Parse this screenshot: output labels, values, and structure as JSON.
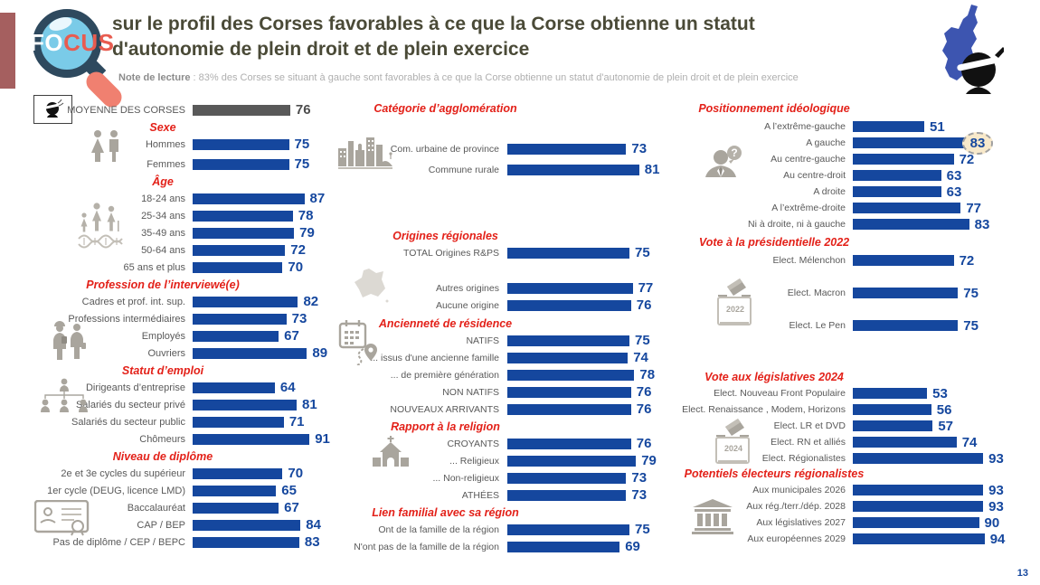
{
  "header": {
    "logo_fo": "FO",
    "logo_cus": "CUS",
    "title_line1": "sur le profil des Corses favorables à ce que la Corse obtienne un statut",
    "title_line2": "d'autonomie de plein droit et de plein exercice",
    "note_label": "Note de lecture",
    "note_text": " : 83% des Corses se situant à gauche sont favorables à ce que la Corse obtienne un statut d'autonomie de plein droit et de plein exercice"
  },
  "page_number": "13",
  "colors": {
    "bar_blue": "#15479E",
    "bar_gray": "#595959",
    "section_red": "#E32119",
    "label_gray": "#595959",
    "title_olive": "#4A4A37",
    "accent_maroon": "#A55F5F",
    "highlight_bg": "#F8E9CB",
    "corsica_blue": "#3D55B0",
    "icon_gray": "#A9A59D"
  },
  "icons": {
    "ballot_2022": "2022",
    "ballot_2024": "2024"
  },
  "chart_data": {
    "type": "bar",
    "orientation": "horizontal",
    "unit": "%",
    "value_range": [
      0,
      100
    ],
    "average": {
      "label": "MOYENNE DES CORSES",
      "value": 76
    },
    "left": {
      "sexe": {
        "title": "Sexe",
        "rows": [
          {
            "label": "Hommes",
            "value": 75
          },
          {
            "label": "Femmes",
            "value": 75
          }
        ]
      },
      "age": {
        "title": "Âge",
        "rows": [
          {
            "label": "18-24 ans",
            "value": 87
          },
          {
            "label": "25-34 ans",
            "value": 78
          },
          {
            "label": "35-49 ans",
            "value": 79
          },
          {
            "label": "50-64 ans",
            "value": 72
          },
          {
            "label": "65 ans et plus",
            "value": 70
          }
        ]
      },
      "profession": {
        "title": "Profession de l’interviewé(e)",
        "rows": [
          {
            "label": "Cadres et prof. int. sup.",
            "value": 82
          },
          {
            "label": "Professions intermédiaires",
            "value": 73
          },
          {
            "label": "Employés",
            "value": 67
          },
          {
            "label": "Ouvriers",
            "value": 89
          }
        ]
      },
      "statut": {
        "title": "Statut d’emploi",
        "rows": [
          {
            "label": "Dirigeants d’entreprise",
            "value": 64
          },
          {
            "label": "Salariés du secteur privé",
            "value": 81
          },
          {
            "label": "Salariés du secteur public",
            "value": 71
          },
          {
            "label": "Chômeurs",
            "value": 91
          }
        ]
      },
      "diplome": {
        "title": "Niveau de diplôme",
        "rows": [
          {
            "label": "2e et 3e cycles du supérieur",
            "value": 70
          },
          {
            "label": "1er cycle (DEUG, licence LMD)",
            "value": 65
          },
          {
            "label": "Baccalauréat",
            "value": 67
          },
          {
            "label": "CAP / BEP",
            "value": 84
          },
          {
            "label": "Pas de diplôme / CEP / BEPC",
            "value": 83
          }
        ]
      }
    },
    "middle": {
      "agglomeration": {
        "title": "Catégorie d’agglomération",
        "rows": [
          {
            "label": "Com. urbaine de province",
            "value": 73
          },
          {
            "label": "Commune rurale",
            "value": 81
          }
        ]
      },
      "origines": {
        "title": "Origines régionales",
        "rows": [
          {
            "label": "TOTAL Origines R&PS",
            "value": 75
          },
          {
            "label": "Autres origines",
            "value": 77
          },
          {
            "label": "Aucune origine",
            "value": 76
          }
        ]
      },
      "anciennete": {
        "title": "Ancienneté de résidence",
        "rows": [
          {
            "label": "NATIFS",
            "value": 75
          },
          {
            "label": "... issus d'une ancienne famille",
            "value": 74
          },
          {
            "label": "... de première génération",
            "value": 78
          },
          {
            "label": "NON NATIFS",
            "value": 76
          },
          {
            "label": "NOUVEAUX ARRIVANTS",
            "value": 76
          }
        ]
      },
      "religion": {
        "title": "Rapport à la religion",
        "rows": [
          {
            "label": "CROYANTS",
            "value": 76
          },
          {
            "label": "... Religieux",
            "value": 79
          },
          {
            "label": "... Non-religieux",
            "value": 73
          },
          {
            "label": "ATHÉES",
            "value": 73
          }
        ]
      },
      "lien": {
        "title": "Lien familial avec sa région",
        "rows": [
          {
            "label": "Ont de la famille de la région",
            "value": 75
          },
          {
            "label": "N'ont pas de la famille de la région",
            "value": 69
          }
        ]
      }
    },
    "right": {
      "ideologie": {
        "title": "Positionnement idéologique",
        "rows": [
          {
            "label": "A l’extrême-gauche",
            "value": 51
          },
          {
            "label": "A gauche",
            "value": 83,
            "highlight": true
          },
          {
            "label": "Au centre-gauche",
            "value": 72
          },
          {
            "label": "Au centre-droit",
            "value": 63
          },
          {
            "label": "A droite",
            "value": 63
          },
          {
            "label": "A l’extrême-droite",
            "value": 77
          },
          {
            "label": "Ni à droite, ni à gauche",
            "value": 83
          }
        ]
      },
      "presidentielle": {
        "title": "Vote à la présidentielle 2022",
        "rows": [
          {
            "label": "Elect. Mélenchon",
            "value": 72
          },
          {
            "label": "Elect. Macron",
            "value": 75
          },
          {
            "label": "Elect. Le Pen",
            "value": 75
          }
        ]
      },
      "legislatives": {
        "title": "Vote aux législatives 2024",
        "rows": [
          {
            "label": "Elect. Nouveau Front Populaire",
            "value": 53
          },
          {
            "label": "Elect. Renaissance , Modem, Horizons",
            "value": 56
          },
          {
            "label": "Elect. LR et DVD",
            "value": 57
          },
          {
            "label": "Elect. RN et alliés",
            "value": 74
          },
          {
            "label": "Elect. Régionalistes",
            "value": 93
          }
        ]
      },
      "potentiels": {
        "title": "Potentiels électeurs régionalistes",
        "rows": [
          {
            "label": "Aux municipales 2026",
            "value": 93
          },
          {
            "label": "Aux rég./terr./dép. 2028",
            "value": 93
          },
          {
            "label": "Aux législatives 2027",
            "value": 90
          },
          {
            "label": "Aux européennes 2029",
            "value": 94
          }
        ]
      }
    }
  }
}
